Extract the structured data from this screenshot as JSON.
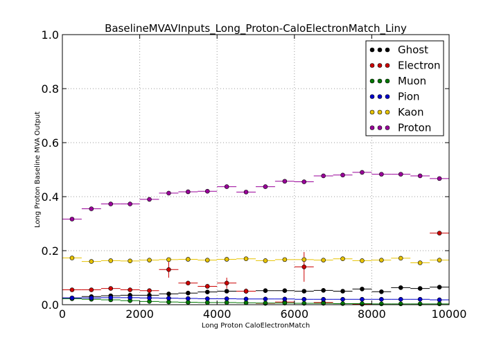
{
  "chart_data": {
    "type": "scatter",
    "title": "BaselineMVAVInputs_Long_Proton-CaloElectronMatch_Liny",
    "xlabel": "Long Proton CaloElectronMatch",
    "ylabel": "Long Proton Baseline MVA Output",
    "xlim": [
      0,
      10000
    ],
    "ylim": [
      0,
      1.0
    ],
    "x_ticks": [
      "0",
      "2000",
      "4000",
      "6000",
      "8000",
      "10000"
    ],
    "y_ticks": [
      "0.0",
      "0.2",
      "0.4",
      "0.6",
      "0.8",
      "1.0"
    ],
    "grid": true,
    "legend_position": "top-right",
    "bin_width": 500,
    "x": [
      250,
      750,
      1250,
      1750,
      2250,
      2750,
      3250,
      3750,
      4250,
      4750,
      5250,
      5750,
      6250,
      6750,
      7250,
      7750,
      8250,
      8750,
      9250,
      9750
    ],
    "series": [
      {
        "name": "Ghost",
        "color": "#000000",
        "values": [
          0.025,
          0.03,
          0.033,
          0.035,
          0.035,
          0.04,
          0.043,
          0.047,
          0.05,
          0.05,
          0.052,
          0.052,
          0.05,
          0.053,
          0.05,
          0.058,
          0.048,
          0.063,
          0.06,
          0.065
        ],
        "errors": [
          0.001,
          0.001,
          0.001,
          0.001,
          0.001,
          0.001,
          0.001,
          0.001,
          0.001,
          0.001,
          0.001,
          0.001,
          0.001,
          0.001,
          0.001,
          0.002,
          0.002,
          0.002,
          0.002,
          0.002
        ]
      },
      {
        "name": "Electron",
        "color": "#cc0000",
        "values": [
          0.055,
          0.055,
          0.06,
          0.055,
          0.052,
          0.13,
          0.08,
          0.068,
          0.08,
          0.05,
          0.005,
          0.01,
          0.14,
          0.008,
          null,
          0.002,
          null,
          null,
          null,
          0.265
        ],
        "errors": [
          0.004,
          0.004,
          0.005,
          0.005,
          0.008,
          0.03,
          0.008,
          0.008,
          0.02,
          0.01,
          0.004,
          0.006,
          0.055,
          0.005,
          0,
          0.003,
          0,
          0,
          0,
          0
        ]
      },
      {
        "name": "Muon",
        "color": "#007700",
        "values": [
          0.022,
          0.02,
          0.018,
          0.015,
          0.012,
          0.01,
          0.009,
          0.008,
          0.008,
          0.007,
          0.006,
          0.006,
          0.005,
          0.005,
          0.004,
          0.004,
          0.003,
          0.003,
          0.003,
          0.003
        ],
        "errors": [
          0.001,
          0.001,
          0.001,
          0.001,
          0.001,
          0.001,
          0.001,
          0.001,
          0.001,
          0.001,
          0.001,
          0.001,
          0.001,
          0.001,
          0.001,
          0.001,
          0.001,
          0.001,
          0.001,
          0.001
        ]
      },
      {
        "name": "Pion",
        "color": "#0000cc",
        "values": [
          0.025,
          0.025,
          0.026,
          0.026,
          0.025,
          0.024,
          0.023,
          0.022,
          0.022,
          0.021,
          0.021,
          0.021,
          0.02,
          0.02,
          0.02,
          0.02,
          0.02,
          0.02,
          0.02,
          0.018
        ],
        "errors": [
          0.001,
          0.001,
          0.001,
          0.001,
          0.001,
          0.001,
          0.001,
          0.001,
          0.001,
          0.001,
          0.001,
          0.001,
          0.001,
          0.001,
          0.001,
          0.001,
          0.001,
          0.001,
          0.001,
          0.001
        ]
      },
      {
        "name": "Kaon",
        "color": "#e6c200",
        "values": [
          0.173,
          0.16,
          0.163,
          0.162,
          0.165,
          0.167,
          0.168,
          0.165,
          0.168,
          0.17,
          0.163,
          0.167,
          0.167,
          0.165,
          0.17,
          0.163,
          0.165,
          0.172,
          0.155,
          0.165
        ],
        "errors": [
          0.002,
          0.002,
          0.002,
          0.002,
          0.002,
          0.002,
          0.002,
          0.002,
          0.002,
          0.002,
          0.002,
          0.002,
          0.002,
          0.002,
          0.002,
          0.002,
          0.002,
          0.003,
          0.003,
          0.003
        ]
      },
      {
        "name": "Proton",
        "color": "#990099",
        "values": [
          0.317,
          0.355,
          0.373,
          0.373,
          0.39,
          0.413,
          0.418,
          0.42,
          0.437,
          0.417,
          0.437,
          0.457,
          0.455,
          0.477,
          0.48,
          0.49,
          0.483,
          0.483,
          0.477,
          0.467
        ],
        "errors": [
          0.002,
          0.002,
          0.002,
          0.002,
          0.002,
          0.002,
          0.002,
          0.002,
          0.002,
          0.002,
          0.002,
          0.002,
          0.002,
          0.002,
          0.002,
          0.002,
          0.002,
          0.002,
          0.002,
          0.002
        ]
      }
    ]
  }
}
